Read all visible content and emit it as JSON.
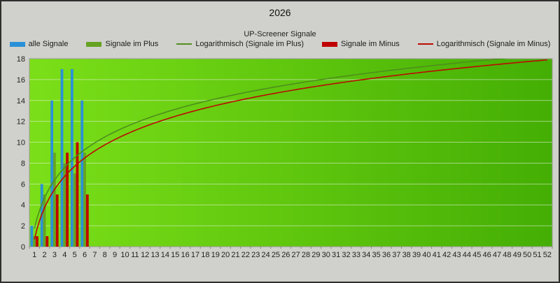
{
  "window": {
    "title": "2026"
  },
  "chart_data": {
    "type": "bar",
    "title": "UP-Screener Signale",
    "xlabel": "",
    "ylabel": "",
    "ylim": [
      0,
      18
    ],
    "ytick_step": 2,
    "grid": true,
    "legend_position": "top",
    "plot_bg_gradient": [
      "#7bdf18",
      "#44ae04"
    ],
    "categories": [
      1,
      2,
      3,
      4,
      5,
      6,
      7,
      8,
      9,
      10,
      11,
      12,
      13,
      14,
      15,
      16,
      17,
      18,
      19,
      20,
      21,
      22,
      23,
      24,
      25,
      26,
      27,
      28,
      29,
      30,
      31,
      32,
      33,
      34,
      35,
      36,
      37,
      38,
      39,
      40,
      41,
      42,
      43,
      44,
      45,
      46,
      47,
      48,
      49,
      50,
      51,
      52
    ],
    "series": [
      {
        "name": "alle Signale",
        "color": "#2a91d8",
        "values": [
          2,
          6,
          14,
          17,
          17,
          14,
          0,
          0,
          0,
          0,
          0,
          0,
          0,
          0,
          0,
          0,
          0,
          0,
          0,
          0,
          0,
          0,
          0,
          0,
          0,
          0,
          0,
          0,
          0,
          0,
          0,
          0,
          0,
          0,
          0,
          0,
          0,
          0,
          0,
          0,
          0,
          0,
          0,
          0,
          0,
          0,
          0,
          0,
          0,
          0,
          0,
          0
        ]
      },
      {
        "name": "Signale im Plus",
        "color": "#66a322",
        "values": [
          1,
          5,
          9,
          8,
          7,
          9,
          0,
          0,
          0,
          0,
          0,
          0,
          0,
          0,
          0,
          0,
          0,
          0,
          0,
          0,
          0,
          0,
          0,
          0,
          0,
          0,
          0,
          0,
          0,
          0,
          0,
          0,
          0,
          0,
          0,
          0,
          0,
          0,
          0,
          0,
          0,
          0,
          0,
          0,
          0,
          0,
          0,
          0,
          0,
          0,
          0,
          0
        ]
      },
      {
        "name": "Signale im Minus",
        "color": "#c00000",
        "values": [
          1,
          1,
          5,
          9,
          10,
          5,
          0,
          0,
          0,
          0,
          0,
          0,
          0,
          0,
          0,
          0,
          0,
          0,
          0,
          0,
          0,
          0,
          0,
          0,
          0,
          0,
          0,
          0,
          0,
          0,
          0,
          0,
          0,
          0,
          0,
          0,
          0,
          0,
          0,
          0,
          0,
          0,
          0,
          0,
          0,
          0,
          0,
          0,
          0,
          0,
          0,
          0
        ]
      }
    ],
    "trendlines": [
      {
        "name": "Logarithmisch (Signale im Plus)",
        "color": "#4e8f1c",
        "formula": "y = a*ln(week) + b",
        "a": 4.21,
        "b": 1.75
      },
      {
        "name": "Logarithmisch (Signale im Minus)",
        "color": "#bb0a01",
        "formula": "y = a*ln(week) + b",
        "a": 4.35,
        "b": 0.7
      }
    ],
    "legend": [
      {
        "label": "alle Signale",
        "swatch": "bar",
        "color": "#2a91d8"
      },
      {
        "label": "Signale im Plus",
        "swatch": "bar",
        "color": "#66a322"
      },
      {
        "label": "Logarithmisch (Signale im Plus)",
        "swatch": "line",
        "color": "#4e8f1c"
      },
      {
        "label": "Signale im Minus",
        "swatch": "bar",
        "color": "#c00000"
      },
      {
        "label": "Logarithmisch (Signale im Minus)",
        "swatch": "line",
        "color": "#bb0a01"
      }
    ]
  }
}
